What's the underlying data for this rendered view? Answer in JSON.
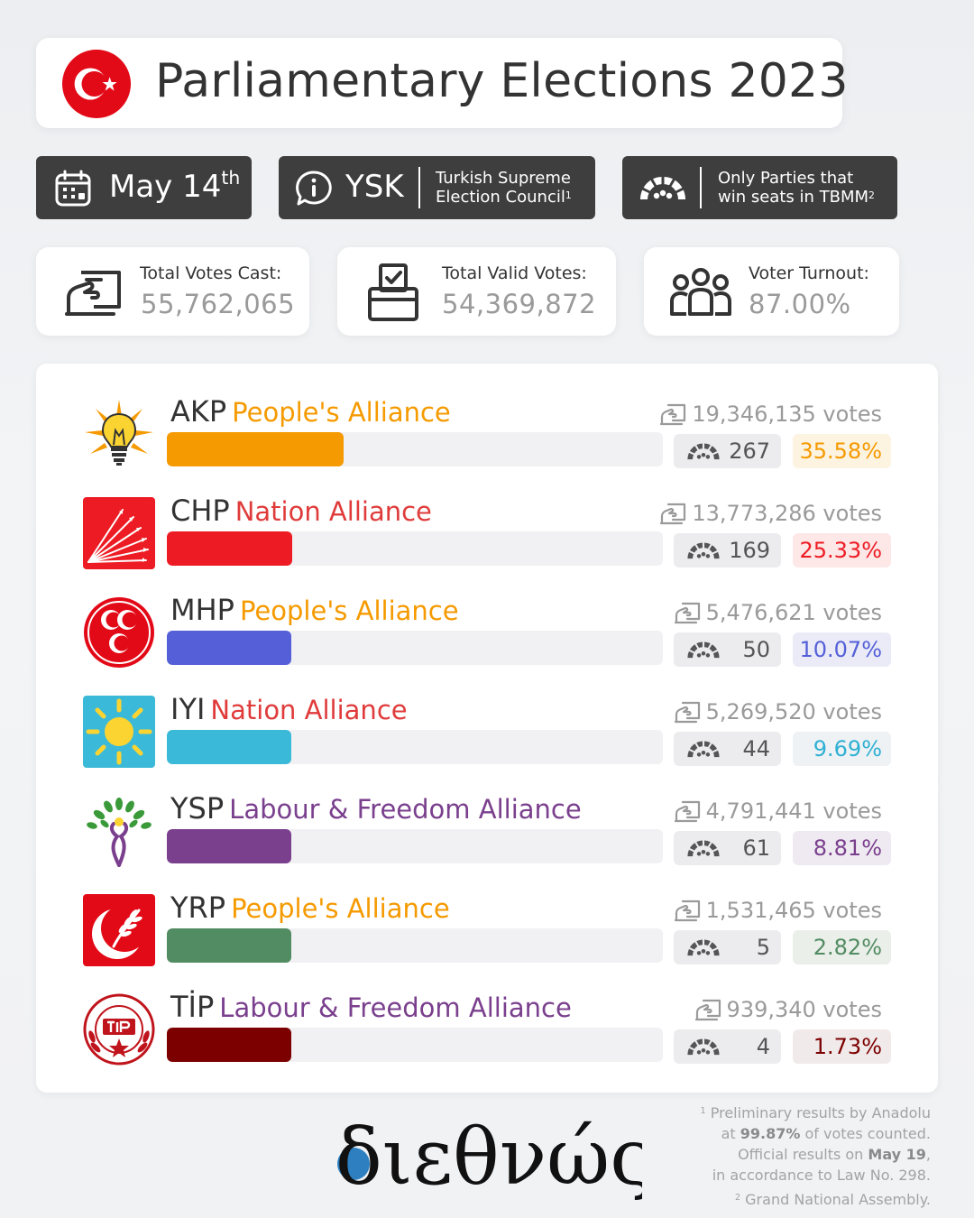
{
  "header": {
    "title": "Parliamentary Elections 2023",
    "flag_colors": {
      "red": "#e30a17",
      "white": "#ffffff"
    }
  },
  "info": {
    "date": "May 14",
    "date_suffix": "th",
    "source_code": "YSK",
    "source_line1": "Turkish Supreme",
    "source_line2": "Election Council",
    "source_note_mark": "1",
    "filter_line1": "Only Parties that",
    "filter_line2": "win seats in TBMM",
    "filter_note_mark": "2"
  },
  "stats": {
    "cast_label": "Total Votes Cast:",
    "cast_value": "55,762,065",
    "valid_label": "Total Valid Votes:",
    "valid_value": "54,369,872",
    "turnout_label": "Voter Turnout:",
    "turnout_value": "87.00%"
  },
  "chart_data": {
    "type": "bar",
    "orientation": "horizontal",
    "bar_scale_max_percent": 100,
    "categories": [
      "AKP",
      "CHP",
      "MHP",
      "IYI",
      "YSP",
      "YRP",
      "TİP"
    ],
    "rows": [
      {
        "party": "AKP",
        "alliance": "People's Alliance",
        "votes": "19,346,135 votes",
        "seats": "267",
        "percent_label": "35.58%",
        "percent": 35.58,
        "color": "#f59a00",
        "alliance_color": "#f59a00",
        "pct_bg": "#fdf3e1"
      },
      {
        "party": "CHP",
        "alliance": "Nation Alliance",
        "votes": "13,773,286 votes",
        "seats": "169",
        "percent_label": "25.33%",
        "percent": 25.33,
        "color": "#ed1c24",
        "alliance_color": "#e03b3b",
        "pct_bg": "#fde7e7"
      },
      {
        "party": "MHP",
        "alliance": "People's Alliance",
        "votes": "5,476,621 votes",
        "seats": "50",
        "percent_label": "10.07%",
        "percent": 10.07,
        "color": "#5560d8",
        "alliance_color": "#f59a00",
        "pct_bg": "#eaebf7"
      },
      {
        "party": "IYI",
        "alliance": "Nation Alliance",
        "votes": "5,269,520 votes",
        "seats": "44",
        "percent_label": "9.69%",
        "percent": 9.69,
        "color": "#3bb9d8",
        "alliance_color": "#e03b3b",
        "pct_bg": "#eef2f5"
      },
      {
        "party": "YSP",
        "alliance": "Labour & Freedom Alliance",
        "votes": "4,791,441 votes",
        "seats": "61",
        "percent_label": "8.81%",
        "percent": 8.81,
        "color": "#7a3f8d",
        "alliance_color": "#7a3f8d",
        "pct_bg": "#efeaf1"
      },
      {
        "party": "YRP",
        "alliance": "People's Alliance",
        "votes": "1,531,465 votes",
        "seats": "5",
        "percent_label": "2.82%",
        "percent": 2.82,
        "color": "#528c62",
        "alliance_color": "#f59a00",
        "pct_bg": "#eaefea"
      },
      {
        "party": "TİP",
        "alliance": "Labour & Freedom Alliance",
        "votes": "939,340 votes",
        "seats": "4",
        "percent_label": "1.73%",
        "percent": 1.73,
        "color": "#7c0000",
        "alliance_color": "#7a3f8d",
        "pct_bg": "#f1eaea"
      }
    ]
  },
  "brand": {
    "name": "διεθνώς",
    "accent_color": "#2d7fc0"
  },
  "footnotes": {
    "n1_mark": "1",
    "n1_a": "Preliminary results by Anadolu",
    "n1_b_pre": "at ",
    "n1_b_bold": "99.87%",
    "n1_b_post": " of votes counted.",
    "n1_c_pre": "Official results on ",
    "n1_c_bold": "May 19",
    "n1_c_post": ",",
    "n1_d": "in accordance to Law No. 298.",
    "n2_mark": "2",
    "n2": "Grand National Assembly."
  }
}
